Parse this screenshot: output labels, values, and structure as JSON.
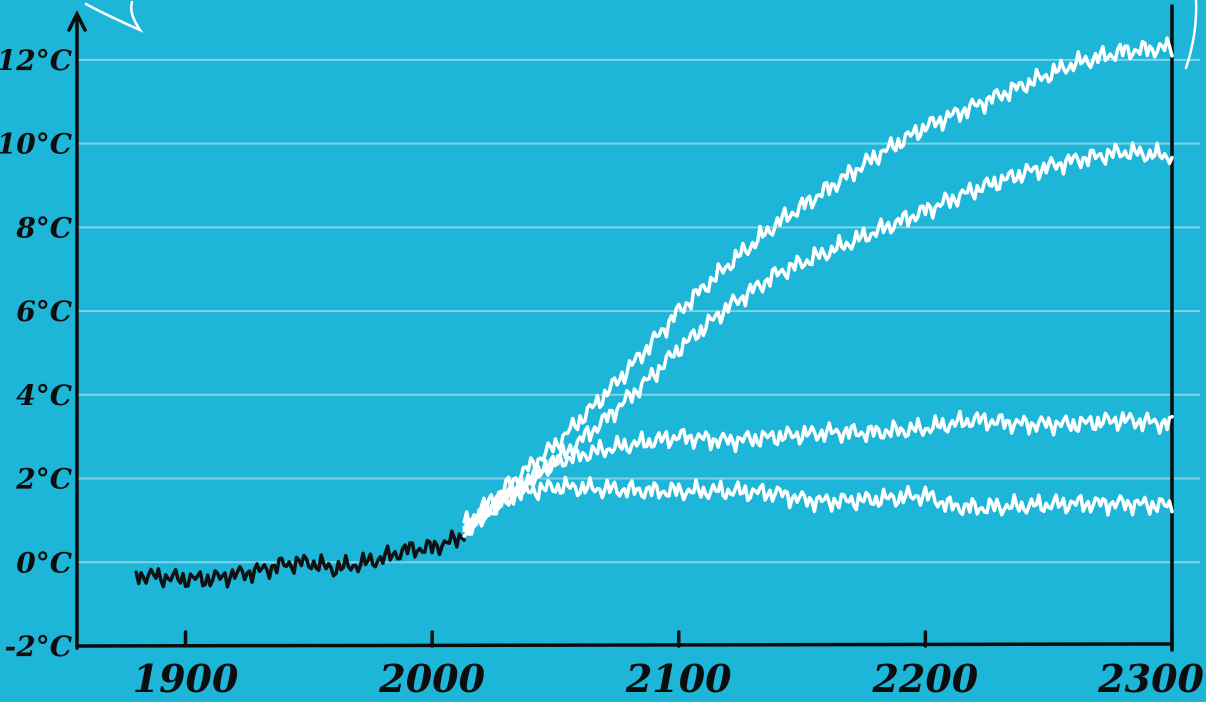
{
  "chart_data": {
    "type": "line",
    "title": "",
    "xlabel": "",
    "ylabel": "",
    "xlim": [
      1856,
      2300
    ],
    "ylim": [
      -2,
      13
    ],
    "x_ticks": [
      {
        "value": 1900,
        "label": "1900"
      },
      {
        "value": 2000,
        "label": "2000"
      },
      {
        "value": 2100,
        "label": "2100"
      },
      {
        "value": 2200,
        "label": "2200"
      },
      {
        "value": 2300,
        "label": "2300"
      }
    ],
    "y_ticks": [
      {
        "value": 12,
        "label": "12°C"
      },
      {
        "value": 10,
        "label": "10°C"
      },
      {
        "value": 8,
        "label": "8°C"
      },
      {
        "value": 6,
        "label": "6°C"
      },
      {
        "value": 4,
        "label": "4°C"
      },
      {
        "value": 2,
        "label": "2°C"
      },
      {
        "value": 0,
        "label": "0°C"
      },
      {
        "value": -2,
        "label": "-2°C"
      }
    ],
    "grid": true,
    "legend": "none",
    "series": [
      {
        "color": "#111111",
        "x": [
          1880,
          1890,
          1900,
          1910,
          1920,
          1930,
          1940,
          1950,
          1960,
          1970,
          1980,
          1990,
          2000,
          2010,
          2013
        ],
        "y": [
          -0.3,
          -0.35,
          -0.4,
          -0.4,
          -0.3,
          -0.2,
          -0.05,
          0.0,
          -0.15,
          -0.05,
          0.1,
          0.3,
          0.35,
          0.55,
          0.7
        ]
      },
      {
        "color": "#ffffff",
        "x": [
          2013,
          2030,
          2050,
          2070,
          2090,
          2100,
          2120,
          2140,
          2160,
          2180,
          2200,
          2220,
          2240,
          2260,
          2280,
          2300
        ],
        "y": [
          0.9,
          1.8,
          2.8,
          4.0,
          5.3,
          6.0,
          7.1,
          8.1,
          8.9,
          9.7,
          10.4,
          10.9,
          11.4,
          11.9,
          12.2,
          12.3
        ]
      },
      {
        "color": "#ffffff",
        "x": [
          2013,
          2030,
          2050,
          2070,
          2090,
          2100,
          2120,
          2140,
          2160,
          2180,
          2200,
          2220,
          2240,
          2260,
          2280,
          2300
        ],
        "y": [
          0.8,
          1.5,
          2.4,
          3.4,
          4.5,
          5.1,
          6.1,
          6.9,
          7.4,
          7.9,
          8.4,
          8.9,
          9.3,
          9.6,
          9.8,
          9.7
        ]
      },
      {
        "color": "#ffffff",
        "x": [
          2013,
          2030,
          2050,
          2070,
          2090,
          2100,
          2120,
          2140,
          2160,
          2180,
          2200,
          2220,
          2240,
          2260,
          2280,
          2300
        ],
        "y": [
          0.7,
          1.6,
          2.4,
          2.7,
          2.9,
          3.0,
          2.9,
          3.0,
          3.1,
          3.1,
          3.2,
          3.4,
          3.3,
          3.3,
          3.4,
          3.3
        ]
      },
      {
        "color": "#ffffff",
        "x": [
          2013,
          2030,
          2050,
          2070,
          2090,
          2100,
          2120,
          2140,
          2150,
          2160,
          2180,
          2200,
          2210,
          2220,
          2240,
          2260,
          2280,
          2300
        ],
        "y": [
          0.8,
          1.6,
          1.8,
          1.75,
          1.7,
          1.7,
          1.7,
          1.65,
          1.5,
          1.45,
          1.5,
          1.6,
          1.35,
          1.3,
          1.35,
          1.4,
          1.4,
          1.35
        ]
      }
    ]
  }
}
